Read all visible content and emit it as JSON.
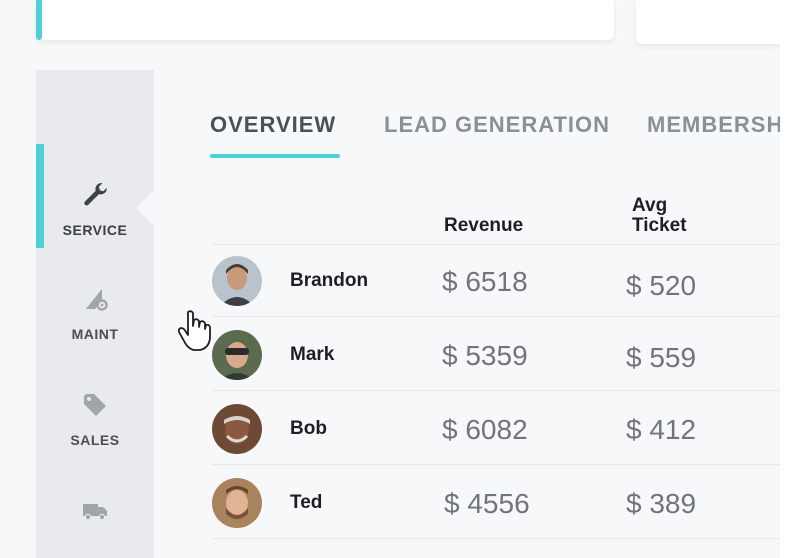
{
  "sidebar": {
    "items": [
      {
        "label": "SERVICE",
        "icon": "wrench-icon",
        "active": true
      },
      {
        "label": "MAINT",
        "icon": "gear-triangle-icon",
        "active": false
      },
      {
        "label": "SALES",
        "icon": "tag-icon",
        "active": false
      },
      {
        "label": "",
        "icon": "truck-icon",
        "active": false
      }
    ]
  },
  "tabs": [
    {
      "label": "OVERVIEW",
      "active": true
    },
    {
      "label": "LEAD GENERATION",
      "active": false
    },
    {
      "label": "MEMBERSHI",
      "active": false
    }
  ],
  "table": {
    "headers": {
      "revenue": "Revenue",
      "avg_ticket": "Avg\nTicket"
    },
    "rows": [
      {
        "name": "Brandon",
        "revenue": "$ 6518",
        "avg_ticket": "$ 520"
      },
      {
        "name": "Mark",
        "revenue": "$ 5359",
        "avg_ticket": "$ 559"
      },
      {
        "name": "Bob",
        "revenue": "$ 6082",
        "avg_ticket": "$ 412"
      },
      {
        "name": "Ted",
        "revenue": "$ 4556",
        "avg_ticket": "$ 389"
      }
    ]
  },
  "colors": {
    "accent": "#4fcfd8",
    "sidebar_bg": "#e8eaed"
  }
}
